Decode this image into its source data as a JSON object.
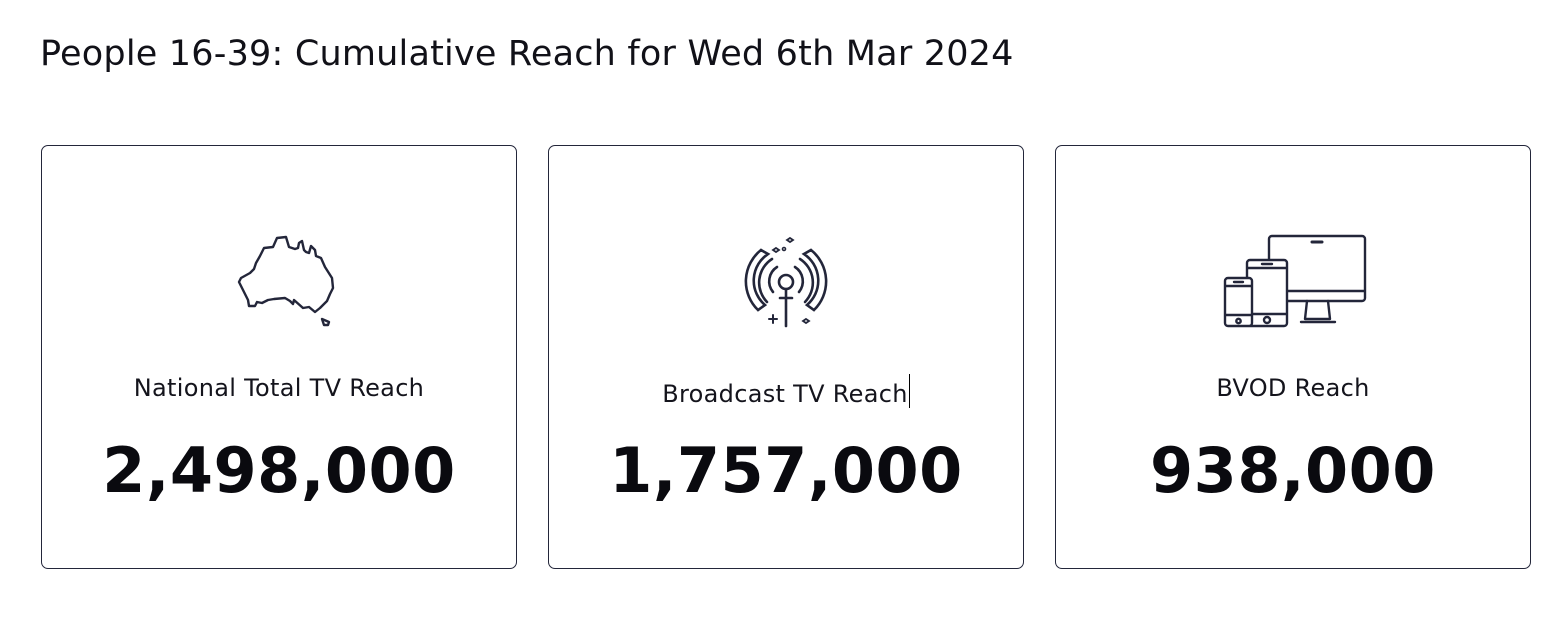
{
  "page": {
    "title": "People 16-39: Cumulative Reach for Wed 6th Mar 2024"
  },
  "colors": {
    "icon_stroke": "#23263a",
    "card_border": "#23263a",
    "text": "#0a0a0f"
  },
  "cards": [
    {
      "icon": "australia-map-icon",
      "label": "National Total TV Reach",
      "value": "2,498,000"
    },
    {
      "icon": "broadcast-antenna-icon",
      "label": "Broadcast TV Reach",
      "value": "1,757,000"
    },
    {
      "icon": "multi-device-icon",
      "label": "BVOD Reach",
      "value": "938,000"
    }
  ]
}
